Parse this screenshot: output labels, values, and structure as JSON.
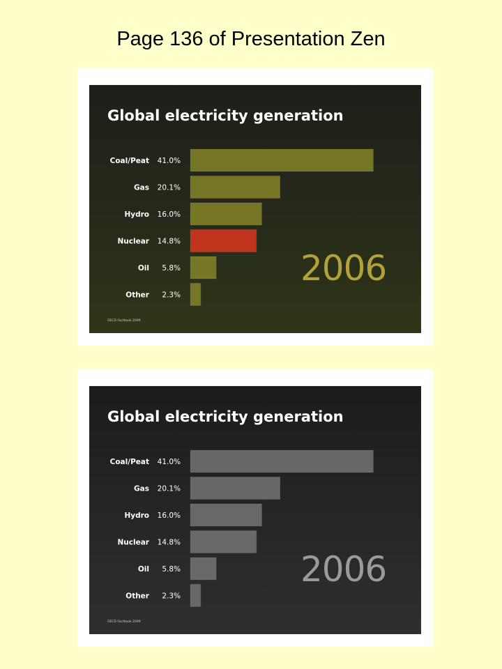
{
  "page_title": "Page 136 of Presentation Zen",
  "chart_data": [
    {
      "type": "bar",
      "orientation": "horizontal",
      "title": "Global electricity generation",
      "categories": [
        "Coal/Peat",
        "Gas",
        "Hydro",
        "Nuclear",
        "Oil",
        "Other"
      ],
      "values": [
        41.0,
        20.1,
        16.0,
        14.8,
        5.8,
        2.3
      ],
      "value_labels": [
        "41.0%",
        "20.1%",
        "16.0%",
        "14.8%",
        "5.8%",
        "2.3%"
      ],
      "annotation": "2006",
      "source": "OECD Factbook 2009",
      "highlight_category": "Nuclear",
      "colors": {
        "bar": "#7a7a26",
        "highlight": "#c8341c",
        "annotation": "#b3a23a",
        "text": "#ffffff"
      }
    },
    {
      "type": "bar",
      "orientation": "horizontal",
      "title": "Global electricity generation",
      "categories": [
        "Coal/Peat",
        "Gas",
        "Hydro",
        "Nuclear",
        "Oil",
        "Other"
      ],
      "values": [
        41.0,
        20.1,
        16.0,
        14.8,
        5.8,
        2.3
      ],
      "value_labels": [
        "41.0%",
        "20.1%",
        "16.0%",
        "14.8%",
        "5.8%",
        "2.3%"
      ],
      "annotation": "2006",
      "source": "OECD Factbook 2009",
      "highlight_category": null,
      "colors": {
        "bar": "#6b6b6b",
        "highlight": "#6b6b6b",
        "annotation": "#9a9a9a",
        "text": "#ffffff"
      }
    }
  ]
}
